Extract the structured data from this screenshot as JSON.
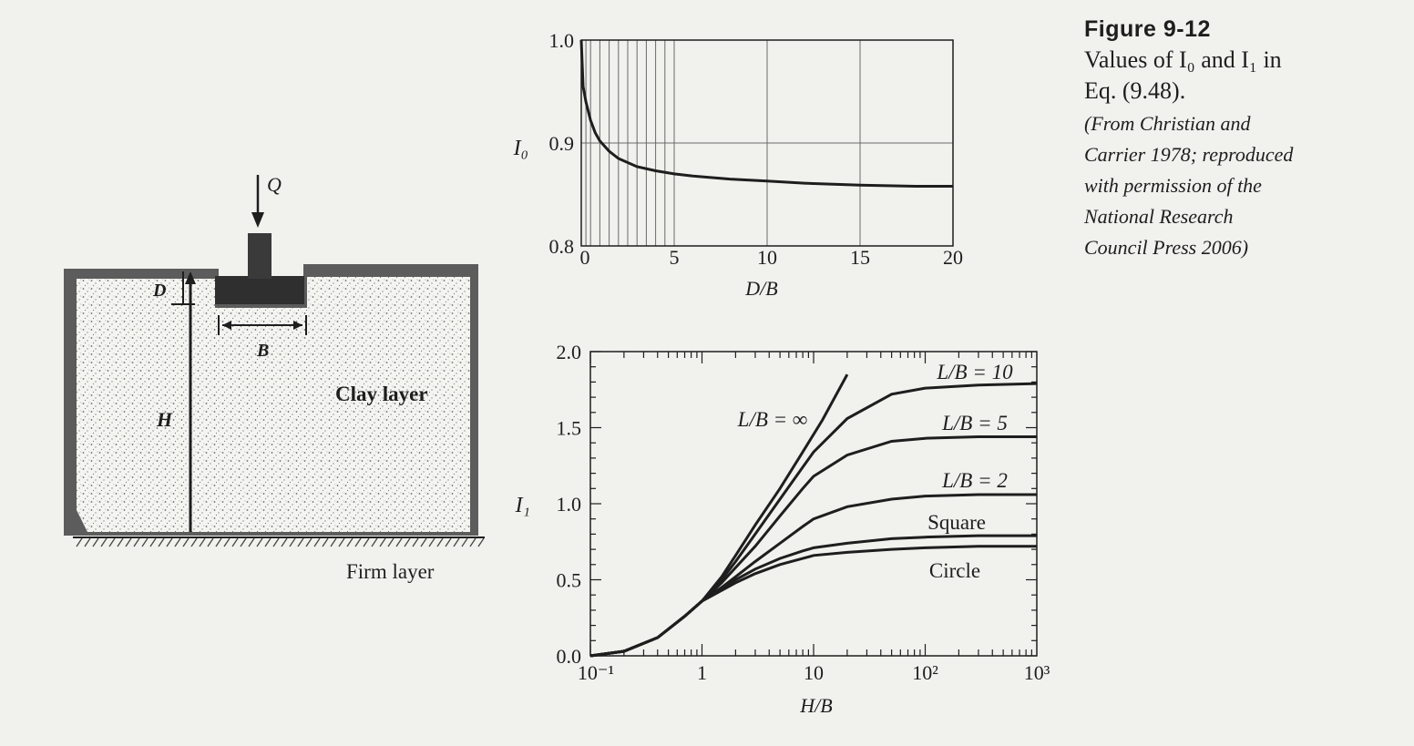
{
  "diagram": {
    "load_label": "Q",
    "depth_label": "D",
    "width_label": "B",
    "thickness_label": "H",
    "clay_label": "Clay layer",
    "firm_label": "Firm layer"
  },
  "caption": {
    "figure_number": "Figure 9-12",
    "description_lines": [
      "Values of I₀ and I₁ in",
      "Eq. (9.48)."
    ],
    "source_lines": [
      "(From Christian and",
      "Carrier 1978; reproduced",
      "with permission of the",
      "National Research",
      "Council Press 2006)"
    ]
  },
  "chart_data": [
    {
      "type": "line",
      "xlabel": "D/B",
      "ylabel": "I₀",
      "xlim": [
        0,
        20
      ],
      "ylim": [
        0.8,
        1.0
      ],
      "x_ticks": [
        0,
        5,
        10,
        15,
        20
      ],
      "x_tick_labels": [
        "0",
        "5",
        "10",
        "15",
        "20"
      ],
      "y_ticks": [
        0.8,
        0.9,
        1.0
      ],
      "y_tick_labels": [
        "0.8",
        "0.9",
        "1.0"
      ],
      "grid": true,
      "series": [
        {
          "x": [
            0,
            0.1,
            0.25,
            0.5,
            0.75,
            1,
            1.5,
            2,
            3,
            4,
            5,
            6,
            8,
            10,
            12,
            15,
            18,
            20
          ],
          "values": [
            1.0,
            0.955,
            0.94,
            0.922,
            0.91,
            0.902,
            0.892,
            0.885,
            0.877,
            0.873,
            0.87,
            0.868,
            0.865,
            0.863,
            0.861,
            0.859,
            0.858,
            0.858
          ]
        }
      ]
    },
    {
      "type": "line",
      "xlabel": "H/B",
      "ylabel": "I₁",
      "x_scale": "log",
      "xlim": [
        0.1,
        1000
      ],
      "ylim": [
        0.0,
        2.0
      ],
      "x_ticks": [
        0.1,
        1,
        10,
        100,
        1000
      ],
      "x_tick_labels": [
        "10⁻¹",
        "1",
        "10",
        "10²",
        "10³"
      ],
      "y_ticks": [
        0.0,
        0.5,
        1.0,
        1.5,
        2.0
      ],
      "y_tick_labels": [
        "0.0",
        "0.5",
        "1.0",
        "1.5",
        "2.0"
      ],
      "grid": false,
      "series": [
        {
          "name": "L/B = ∞",
          "x": [
            0.1,
            0.2,
            0.4,
            0.7,
            1,
            1.5,
            2,
            3,
            5,
            8,
            12,
            20
          ],
          "values": [
            0.0,
            0.03,
            0.12,
            0.26,
            0.36,
            0.52,
            0.66,
            0.86,
            1.1,
            1.34,
            1.55,
            1.85
          ]
        },
        {
          "name": "L/B = 10",
          "x": [
            0.1,
            0.2,
            0.4,
            0.7,
            1,
            1.5,
            2,
            3,
            5,
            8,
            10,
            20,
            50,
            100,
            300,
            1000
          ],
          "values": [
            0.0,
            0.03,
            0.12,
            0.26,
            0.36,
            0.5,
            0.62,
            0.8,
            1.03,
            1.24,
            1.34,
            1.56,
            1.72,
            1.76,
            1.78,
            1.79
          ]
        },
        {
          "name": "L/B = 5",
          "x": [
            0.1,
            0.2,
            0.4,
            0.7,
            1,
            1.5,
            2,
            3,
            5,
            8,
            10,
            20,
            50,
            100,
            300,
            1000
          ],
          "values": [
            0.0,
            0.03,
            0.12,
            0.26,
            0.36,
            0.48,
            0.58,
            0.72,
            0.92,
            1.1,
            1.18,
            1.32,
            1.41,
            1.43,
            1.44,
            1.44
          ]
        },
        {
          "name": "L/B = 2",
          "x": [
            0.1,
            0.2,
            0.4,
            0.7,
            1,
            1.5,
            2,
            3,
            5,
            8,
            10,
            20,
            50,
            100,
            300,
            1000
          ],
          "values": [
            0.0,
            0.03,
            0.12,
            0.26,
            0.36,
            0.45,
            0.52,
            0.62,
            0.74,
            0.85,
            0.9,
            0.98,
            1.03,
            1.05,
            1.06,
            1.06
          ]
        },
        {
          "name": "Square",
          "x": [
            0.1,
            0.2,
            0.4,
            0.7,
            1,
            1.5,
            2,
            3,
            5,
            8,
            10,
            20,
            50,
            100,
            300,
            1000
          ],
          "values": [
            0.0,
            0.03,
            0.12,
            0.26,
            0.36,
            0.44,
            0.5,
            0.57,
            0.64,
            0.69,
            0.71,
            0.74,
            0.77,
            0.78,
            0.79,
            0.79
          ]
        },
        {
          "name": "Circle",
          "x": [
            0.1,
            0.2,
            0.4,
            0.7,
            1,
            1.5,
            2,
            3,
            5,
            8,
            10,
            20,
            50,
            100,
            300,
            1000
          ],
          "values": [
            0.0,
            0.03,
            0.12,
            0.26,
            0.36,
            0.43,
            0.48,
            0.54,
            0.6,
            0.64,
            0.66,
            0.68,
            0.7,
            0.71,
            0.72,
            0.72
          ]
        }
      ]
    }
  ]
}
